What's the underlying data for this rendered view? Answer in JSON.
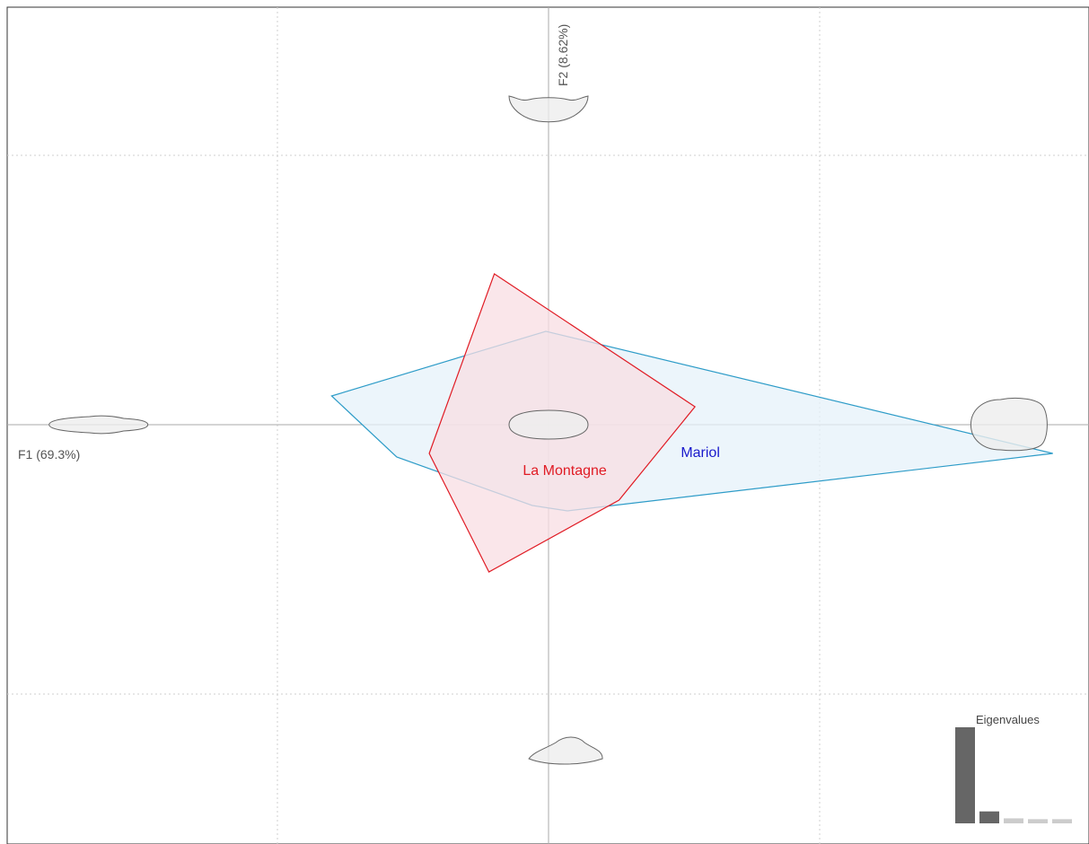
{
  "chart_data": {
    "type": "scatter",
    "subtype": "pca-factorial-plane",
    "xlabel": "F1 (69.3%)",
    "ylabel": "F2 (8.62%)",
    "xlim": [
      -1.0,
      1.0
    ],
    "ylim": [
      -1.15,
      1.15
    ],
    "grid": true,
    "grid_x": [
      -0.5,
      0.5
    ],
    "grid_y": [
      -0.75,
      0.75
    ],
    "colors": {
      "frame": "#333333",
      "axis": "#aaaaaa",
      "grid": "#cfcfcf",
      "la_montagne": "#e01b24",
      "la_montagne_fill": "#f8dde3",
      "mariol": "#2e9cc8",
      "mariol_fill": "#e6f1fa",
      "mariol_label": "#1a1acc",
      "shape_fill": "#eeeeee",
      "shape_stroke": "#666666",
      "eig_major": "#666666",
      "eig_minor": "#cccccc"
    },
    "groups": [
      {
        "name": "La Montagne",
        "hull": [
          [
            -0.1,
            0.42
          ],
          [
            0.27,
            0.05
          ],
          [
            0.13,
            -0.21
          ],
          [
            -0.11,
            -0.41
          ],
          [
            -0.22,
            -0.08
          ]
        ],
        "label_pos": [
          0.03,
          -0.14
        ]
      },
      {
        "name": "Mariol",
        "hull": [
          [
            -0.4,
            0.08
          ],
          [
            -0.005,
            0.26
          ],
          [
            0.93,
            -0.08
          ],
          [
            0.035,
            -0.24
          ],
          [
            -0.03,
            -0.225
          ],
          [
            -0.28,
            -0.09
          ]
        ],
        "label_pos": [
          0.28,
          -0.09
        ]
      }
    ],
    "shape_outlines": [
      {
        "id": "mean",
        "at": [
          0.0,
          0.0
        ],
        "shape": "mean"
      },
      {
        "id": "pc1-neg",
        "at": [
          -0.83,
          0.0
        ],
        "shape": "pc1-neg"
      },
      {
        "id": "pc1-pos",
        "at": [
          0.85,
          0.0
        ],
        "shape": "pc1-pos"
      },
      {
        "id": "pc2-pos",
        "at": [
          0.0,
          0.89
        ],
        "shape": "pc2-pos"
      },
      {
        "id": "pc2-neg",
        "at": [
          0.03,
          -0.91
        ],
        "shape": "pc2-neg"
      }
    ],
    "eigenvalues": {
      "title": "Eigenvalues",
      "values": [
        69.3,
        8.62,
        3.6,
        3.0,
        3.0
      ],
      "highlight_count": 2
    }
  }
}
